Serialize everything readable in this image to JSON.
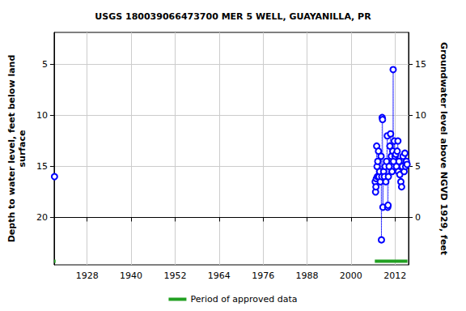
{
  "chart_data": {
    "type": "scatter",
    "title": "USGS 180039066473700 MER 5 WELL, GUAYANILLA, PR",
    "x_label": "",
    "y_label": "Depth to water level, feet below land\nsurface",
    "y2_label": "Groundwater level above NGVD 1929, feet",
    "xlim": [
      1919,
      2015.7
    ],
    "xticks": [
      1928,
      1940,
      1952,
      1964,
      1976,
      1988,
      2000,
      2012
    ],
    "ylim": [
      1.85,
      24.65
    ],
    "yticks": [
      5,
      10,
      15,
      20
    ],
    "y_inverted": true,
    "y2lim": [
      -4.65,
      18.15
    ],
    "y2ticks": [
      0,
      5,
      10,
      15
    ],
    "grid": true,
    "legend": "bottom",
    "color": "#0000ff",
    "marker": "circle",
    "line_style": "dotted",
    "x": [
      1919.1,
      2000,
      2006.6,
      2006.7,
      2006.8,
      2006.9,
      2007.0,
      2007.1,
      2007.2,
      2007.3,
      2007.5,
      2007.6,
      2007.8,
      2008.0,
      2008.2,
      2008.3,
      2008.4,
      2008.5,
      2008.6,
      2008.7,
      2008.9,
      2009.1,
      2009.3,
      2009.5,
      2009.7,
      2009.9,
      2010.0,
      2010.1,
      2010.2,
      2010.4,
      2010.6,
      2010.8,
      2011.0,
      2011.2,
      2011.4,
      2011.5,
      2011.6,
      2011.8,
      2012.0,
      2012.2,
      2012.4,
      2012.6,
      2012.8,
      2012.9,
      2013.1,
      2013.3,
      2013.6,
      2013.8,
      2014.0,
      2014.2,
      2014.5,
      2014.7,
      2014.9,
      2015.1,
      2015.3
    ],
    "values": [
      16.0,
      null,
      16.5,
      17.5,
      17.0,
      16.2,
      13.0,
      15.0,
      16.0,
      14.5,
      13.5,
      16.0,
      15.5,
      16.5,
      14.0,
      22.2,
      16.0,
      10.2,
      10.4,
      19.0,
      15.5,
      16.0,
      15.0,
      16.5,
      14.5,
      12.0,
      19.0,
      18.8,
      16.0,
      15.0,
      13.0,
      11.8,
      14.0,
      15.5,
      13.5,
      5.5,
      14.5,
      12.5,
      14.0,
      13.8,
      15.0,
      13.5,
      12.5,
      15.5,
      14.5,
      15.8,
      16.5,
      17.0,
      15.0,
      14.0,
      15.5,
      13.7,
      15.0,
      14.5,
      14.8
    ],
    "approved_periods": {
      "name": "Period of approved data",
      "color": "#22a022",
      "level": 24.3,
      "ranges": [
        [
          1919,
          1919.4
        ],
        [
          2006.5,
          2015.4
        ]
      ]
    }
  }
}
